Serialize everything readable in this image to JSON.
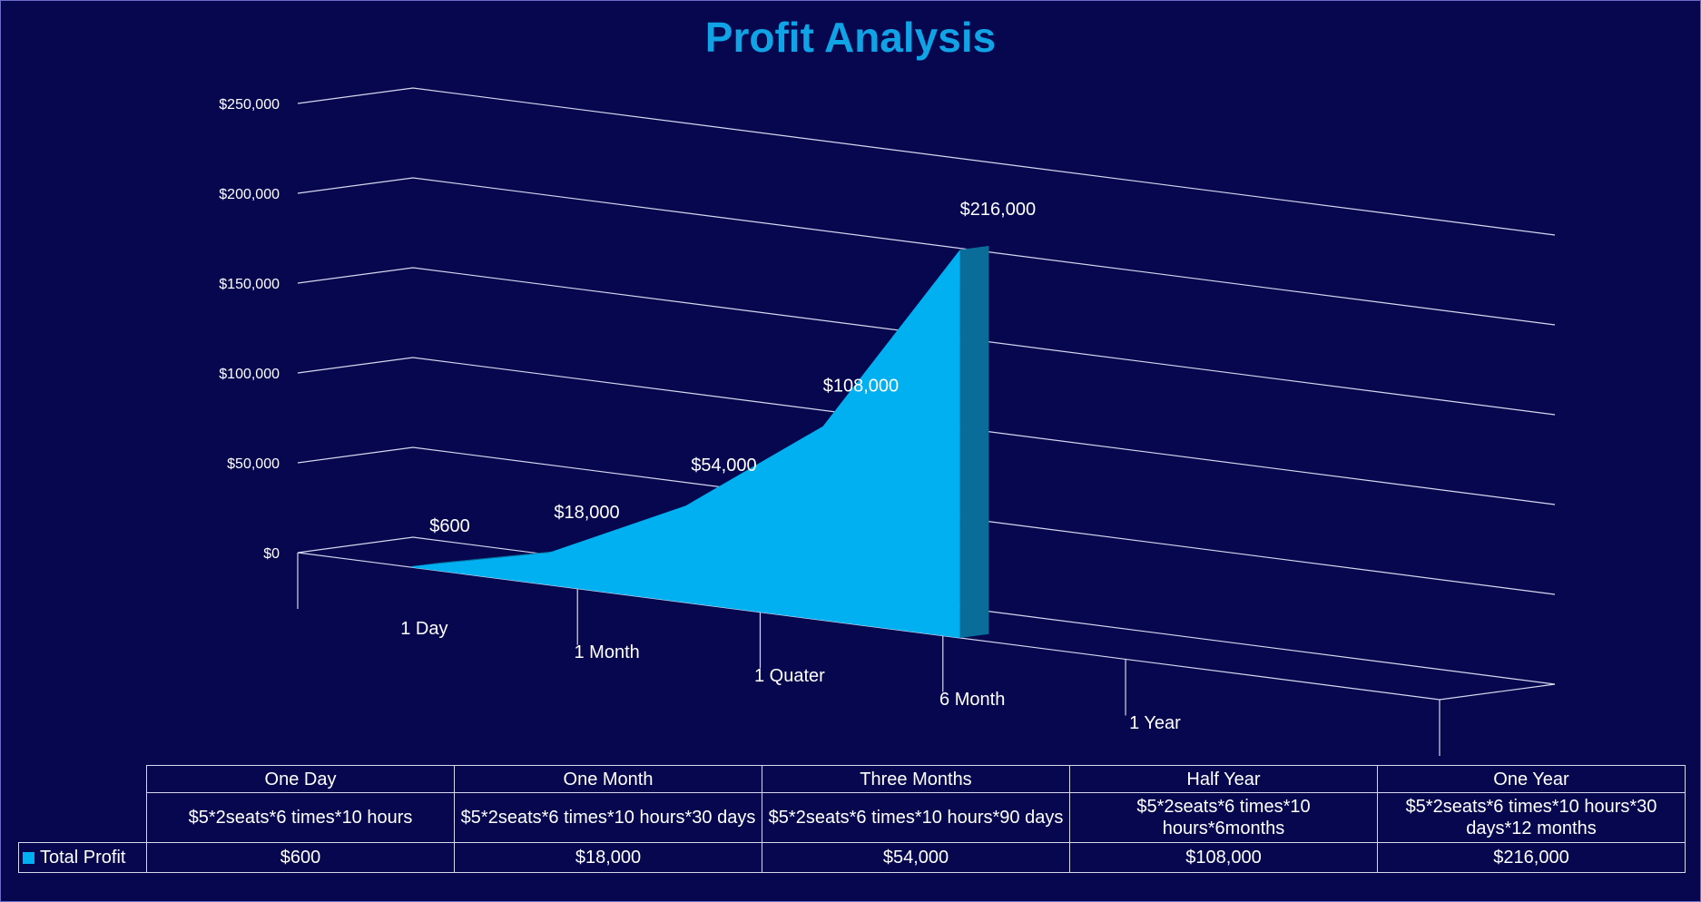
{
  "colors": {
    "background": "#06074f",
    "title": "#10a3e6",
    "area_front": "#00b0f0",
    "area_side": "#0a6c98",
    "grid": "#d6d8ee"
  },
  "chart_data": {
    "type": "area",
    "title": "Profit Analysis",
    "categories": [
      "1 Day",
      "1 Month",
      "1 Quater",
      "6 Month",
      "1 Year"
    ],
    "series": [
      {
        "name": "Total Profit",
        "values": [
          600,
          18000,
          54000,
          108000,
          216000
        ]
      }
    ],
    "data_labels": [
      "$600",
      "$18,000",
      "$54,000",
      "$108,000",
      "$216,000"
    ],
    "y_ticks": [
      "$0",
      "$50,000",
      "$100,000",
      "$150,000",
      "$200,000",
      "$250,000"
    ],
    "ylim": [
      0,
      250000
    ],
    "grid": true,
    "three_d": true
  },
  "data_table": {
    "headers": [
      "One Day",
      "One Month",
      "Three Months",
      "Half Year",
      "One Year"
    ],
    "formulas": [
      "$5*2seats*6 times*10 hours",
      "$5*2seats*6 times*10 hours*30 days",
      "$5*2seats*6 times*10 hours*90 days",
      "$5*2seats*6 times*10 hours*6months",
      "$5*2seats*6 times*10 hours*30 days*12 months"
    ],
    "series_label": "Total Profit",
    "values": [
      "$600",
      "$18,000",
      "$54,000",
      "$108,000",
      "$216,000"
    ],
    "legend_icon": "square-legend-key-icon"
  }
}
